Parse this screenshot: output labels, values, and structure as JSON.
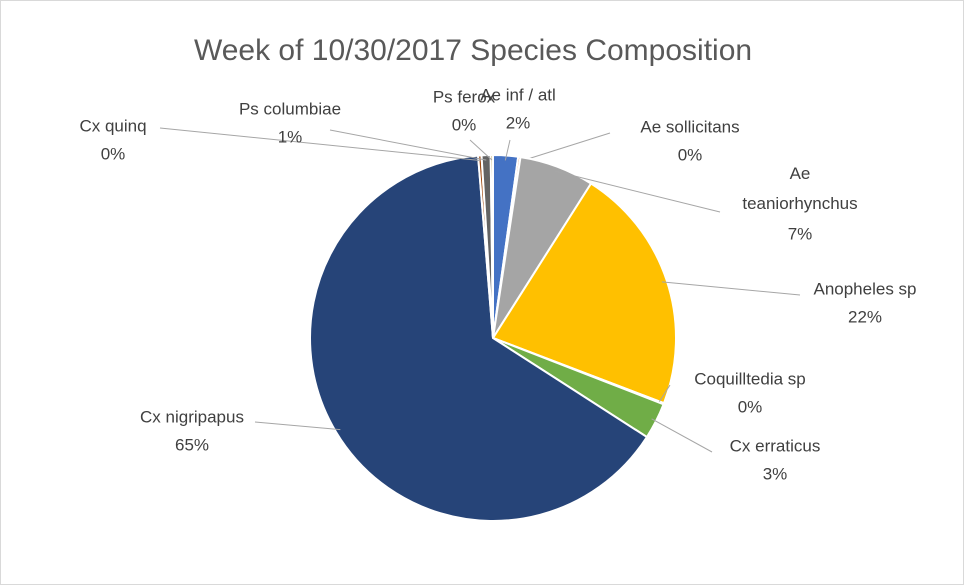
{
  "chart_data": {
    "type": "pie",
    "title": "Week of 10/30/2017 Species Composition",
    "categories": [
      "Ae inf / atl",
      "Ae sollicitans",
      "Ae teaniorhynchus",
      "Anopheles sp",
      "Coquilltedia sp",
      "Cx erraticus",
      "Cx nigripapus",
      "Cx quinq",
      "Ps columbiae",
      "Ps ferox"
    ],
    "values": [
      2.2,
      0.2,
      6.6,
      21.8,
      0.1,
      3.2,
      64.6,
      0.3,
      0.8,
      0.2
    ],
    "value_labels": [
      "2%",
      "0%",
      "7%",
      "22%",
      "0%",
      "3%",
      "65%",
      "0%",
      "1%",
      "0%"
    ],
    "colors": [
      "#4472c4",
      "#ed7d31",
      "#a5a5a5",
      "#ffc000",
      "#5b9bd5",
      "#70ad47",
      "#264478",
      "#9e480e",
      "#636363",
      "#997300"
    ]
  }
}
